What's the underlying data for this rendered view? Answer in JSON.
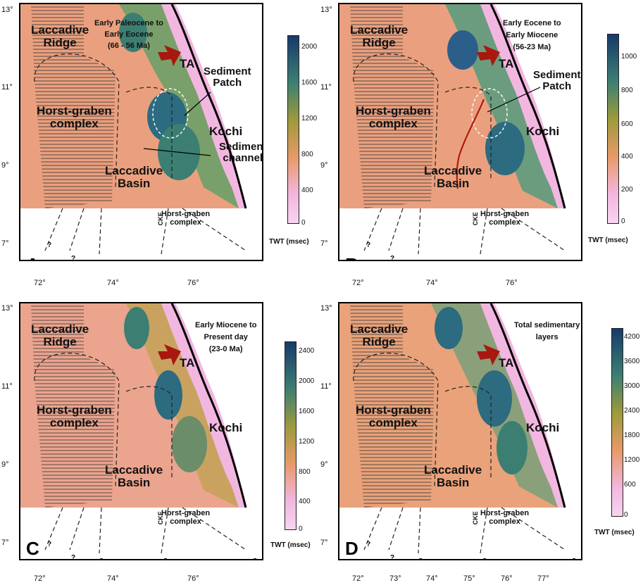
{
  "panels": [
    {
      "letter": "A",
      "period": [
        "Early Paleocene to",
        "Early Eocene",
        "(66 - 56 Ma)"
      ],
      "ticks": [
        "2000",
        "1600",
        "1200",
        "800",
        "400",
        "0"
      ],
      "unit": "TWT (msec)",
      "x_ticks": [
        "72°",
        "74°",
        "76°"
      ],
      "y_ticks": [
        "13°",
        "11°",
        "9°",
        "7°"
      ],
      "extra": [
        "Sediment",
        "Patch",
        "Sediment",
        "channel"
      ]
    },
    {
      "letter": "B",
      "period": [
        "Early Eocene to",
        "Early Miocene",
        "(56-23 Ma)"
      ],
      "ticks": [
        "1000",
        "800",
        "600",
        "400",
        "200",
        "0"
      ],
      "unit": "TWT (msec)",
      "x_ticks": [
        "72°",
        "74°",
        "76°"
      ],
      "y_ticks": [
        "13°",
        "11°",
        "9°",
        "7°"
      ],
      "extra": [
        "Sediment",
        "Patch"
      ]
    },
    {
      "letter": "C",
      "period": [
        "Early Miocene to",
        "Present day",
        "(23-0 Ma)"
      ],
      "ticks": [
        "2400",
        "2000",
        "1600",
        "1200",
        "800",
        "400",
        "0"
      ],
      "unit": "TWT (msec)",
      "x_ticks": [
        "72°",
        "74°",
        "76°"
      ],
      "y_ticks": [
        "13°",
        "11°",
        "9°",
        "7°"
      ],
      "extra": []
    },
    {
      "letter": "D",
      "period": [
        "Total sedimentary",
        "layers"
      ],
      "ticks": [
        "4200",
        "3600",
        "3000",
        "2400",
        "1800",
        "1200",
        "600",
        "0"
      ],
      "unit": "TWT (msec)",
      "x_ticks": [
        "72°",
        "73°",
        "74°",
        "75°",
        "76°",
        "77°"
      ],
      "y_ticks": [
        "13°",
        "11°",
        "9°",
        "7°"
      ],
      "extra": []
    }
  ],
  "labels": {
    "ridge": [
      "Laccadive",
      "Ridge"
    ],
    "horst": [
      "Horst-graben",
      "complex"
    ],
    "basin": [
      "Laccadive",
      "Basin"
    ],
    "kochi": "Kochi",
    "ta": "TA",
    "cke": "CKE",
    "horst_small": [
      "Horst-graben",
      "complex"
    ],
    "q": "?"
  },
  "colors": {
    "low": "#f2b7e0",
    "mid": "#e79a6a",
    "olive": "#9d9a3c",
    "green": "#3c7f72",
    "high": "#173a6a",
    "arrow": "#a8180f",
    "fault": "#b01a10"
  }
}
